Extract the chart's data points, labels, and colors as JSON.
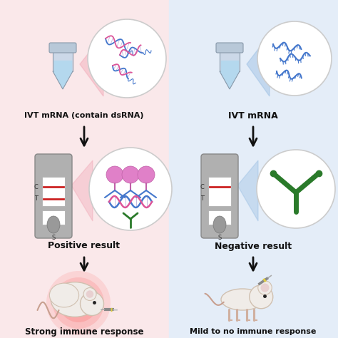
{
  "bg_left_color": "#fae8ea",
  "bg_right_color": "#e4edf8",
  "left_title": "IVT mRNA (contain dsRNA)",
  "right_title": "IVT mRNA",
  "left_result": "Positive result",
  "right_result": "Negative result",
  "left_bottom": "Strong immune response",
  "right_bottom": "Mild to no immune response",
  "strip_line_color": "#cc2222",
  "circle_edge": "#cccccc",
  "antibody_pink": "#e070b0",
  "antibody_green": "#2a7a2a",
  "dna_blue": "#4477cc",
  "dna_pink": "#dd5599",
  "antibody_y_color": "#2a7a2a",
  "tube_body": "#c8d8e8",
  "tube_liquid": "#b0d0e8",
  "beam_pink": "#f0a0b0",
  "beam_blue": "#90b8e0"
}
